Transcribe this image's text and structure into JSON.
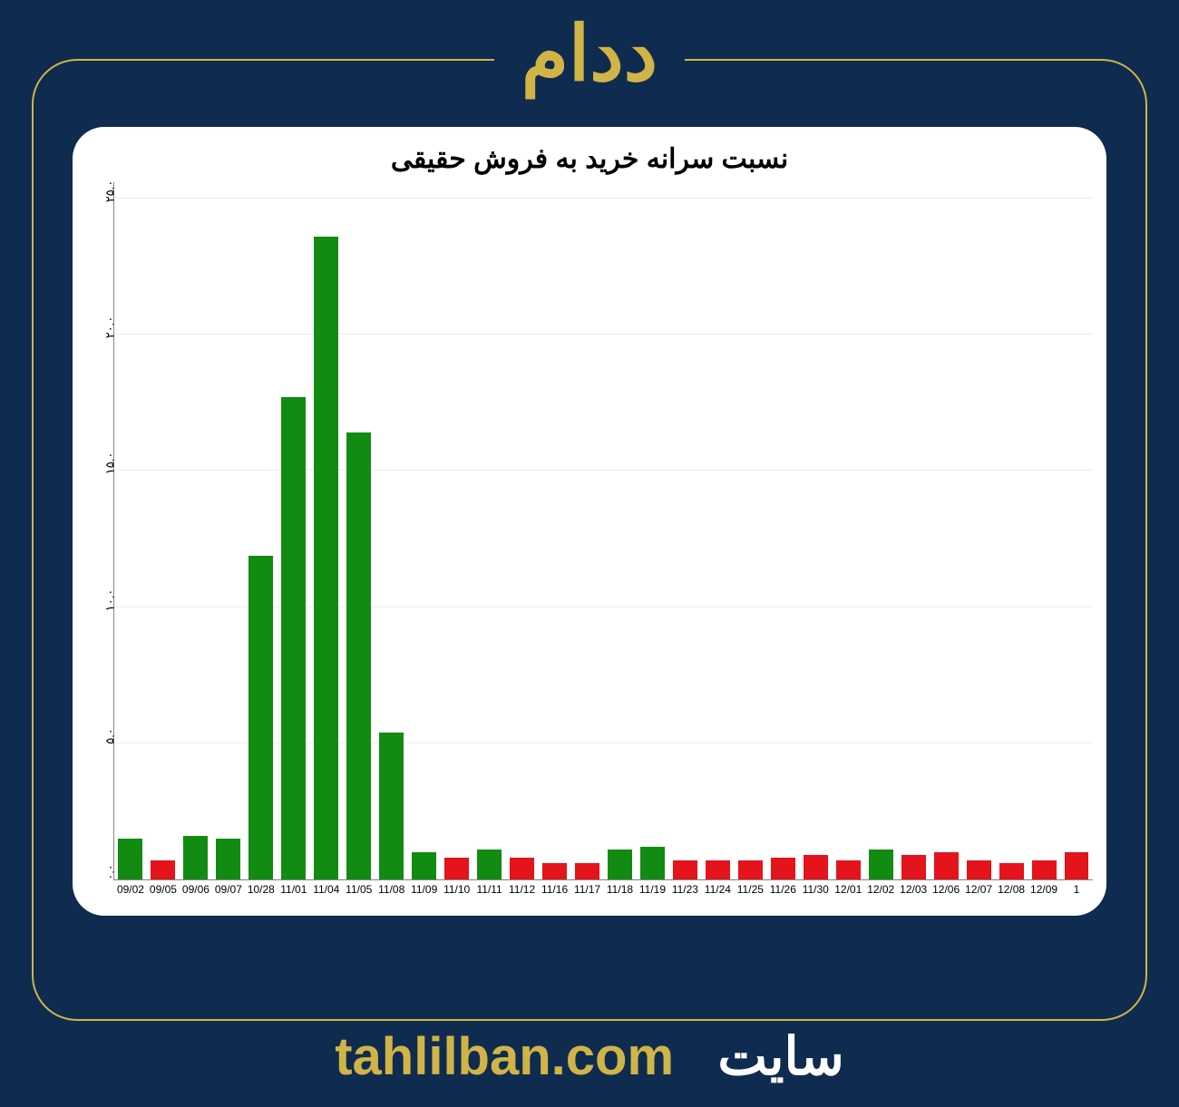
{
  "header": {
    "title": "ددام"
  },
  "footer": {
    "url": "tahlilban.com",
    "label": "سایت"
  },
  "chart": {
    "type": "bar",
    "title": "نسبت سرانه خرید به فروش حقیقی",
    "title_fontsize": 30,
    "background_color": "#ffffff",
    "grid_color": "#eeeeee",
    "axis_color": "#888888",
    "ylim": [
      0,
      25.6
    ],
    "ytick_step": 5,
    "ytick_labels": [
      "۰.۰",
      "۵.۰",
      "۱۰.۰",
      "۱۵.۰",
      "۲۰.۰",
      "۲۵.۰"
    ],
    "bar_width_ratio": 0.75,
    "colors": {
      "green": "#128b12",
      "red": "#e4131c"
    },
    "categories": [
      "09/02",
      "09/05",
      "09/06",
      "09/07",
      "10/28",
      "11/01",
      "11/04",
      "11/05",
      "11/08",
      "11/09",
      "11/10",
      "11/11",
      "11/12",
      "11/16",
      "11/17",
      "11/18",
      "11/19",
      "11/23",
      "11/24",
      "11/25",
      "11/26",
      "11/30",
      "12/01",
      "12/02",
      "12/03",
      "12/06",
      "12/07",
      "12/08",
      "12/09",
      "1"
    ],
    "values": [
      1.5,
      0.7,
      1.6,
      1.5,
      11.9,
      17.7,
      23.6,
      16.4,
      5.4,
      1.0,
      0.8,
      1.1,
      0.8,
      0.6,
      0.6,
      1.1,
      1.2,
      0.7,
      0.7,
      0.7,
      0.8,
      0.9,
      0.7,
      1.1,
      0.9,
      1.0,
      0.7,
      0.6,
      0.7,
      1.0
    ],
    "bar_kinds": [
      "green",
      "red",
      "green",
      "green",
      "green",
      "green",
      "green",
      "green",
      "green",
      "green",
      "red",
      "green",
      "red",
      "red",
      "red",
      "green",
      "green",
      "red",
      "red",
      "red",
      "red",
      "red",
      "red",
      "green",
      "red",
      "red",
      "red",
      "red",
      "red",
      "red"
    ],
    "tick_fontsize": 12
  },
  "page": {
    "bg_color": "#0f2b4f",
    "accent_color": "#d0b447"
  }
}
